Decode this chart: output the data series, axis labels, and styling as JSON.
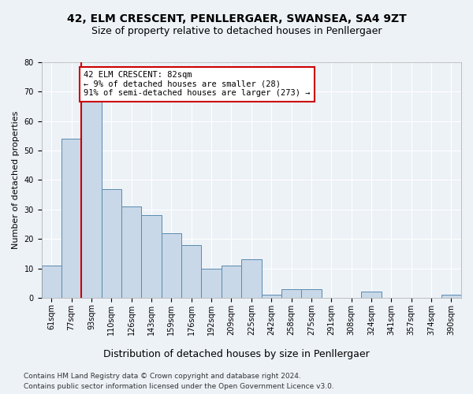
{
  "title": "42, ELM CRESCENT, PENLLERGAER, SWANSEA, SA4 9ZT",
  "subtitle": "Size of property relative to detached houses in Penllergaer",
  "xlabel": "Distribution of detached houses by size in Penllergaer",
  "ylabel": "Number of detached properties",
  "categories": [
    "61sqm",
    "77sqm",
    "93sqm",
    "110sqm",
    "126sqm",
    "143sqm",
    "159sqm",
    "176sqm",
    "192sqm",
    "209sqm",
    "225sqm",
    "242sqm",
    "258sqm",
    "275sqm",
    "291sqm",
    "308sqm",
    "324sqm",
    "341sqm",
    "357sqm",
    "374sqm",
    "390sqm"
  ],
  "values": [
    11,
    54,
    67,
    37,
    31,
    28,
    22,
    18,
    10,
    11,
    13,
    1,
    3,
    3,
    0,
    0,
    2,
    0,
    0,
    0,
    1
  ],
  "bar_color": "#c8d8e8",
  "bar_edge_color": "#5a8ab0",
  "annotation_line1": "42 ELM CRESCENT: 82sqm",
  "annotation_line2": "← 9% of detached houses are smaller (28)",
  "annotation_line3": "91% of semi-detached houses are larger (273) →",
  "annotation_box_color": "#ffffff",
  "annotation_box_edge_color": "#cc0000",
  "red_line_color": "#cc0000",
  "ylim": [
    0,
    80
  ],
  "yticks": [
    0,
    10,
    20,
    30,
    40,
    50,
    60,
    70,
    80
  ],
  "footer1": "Contains HM Land Registry data © Crown copyright and database right 2024.",
  "footer2": "Contains public sector information licensed under the Open Government Licence v3.0.",
  "background_color": "#edf2f7",
  "plot_background_color": "#edf2f7",
  "title_fontsize": 10,
  "subtitle_fontsize": 9,
  "xlabel_fontsize": 9,
  "ylabel_fontsize": 8,
  "tick_fontsize": 7,
  "annotation_fontsize": 7.5,
  "footer_fontsize": 6.5
}
